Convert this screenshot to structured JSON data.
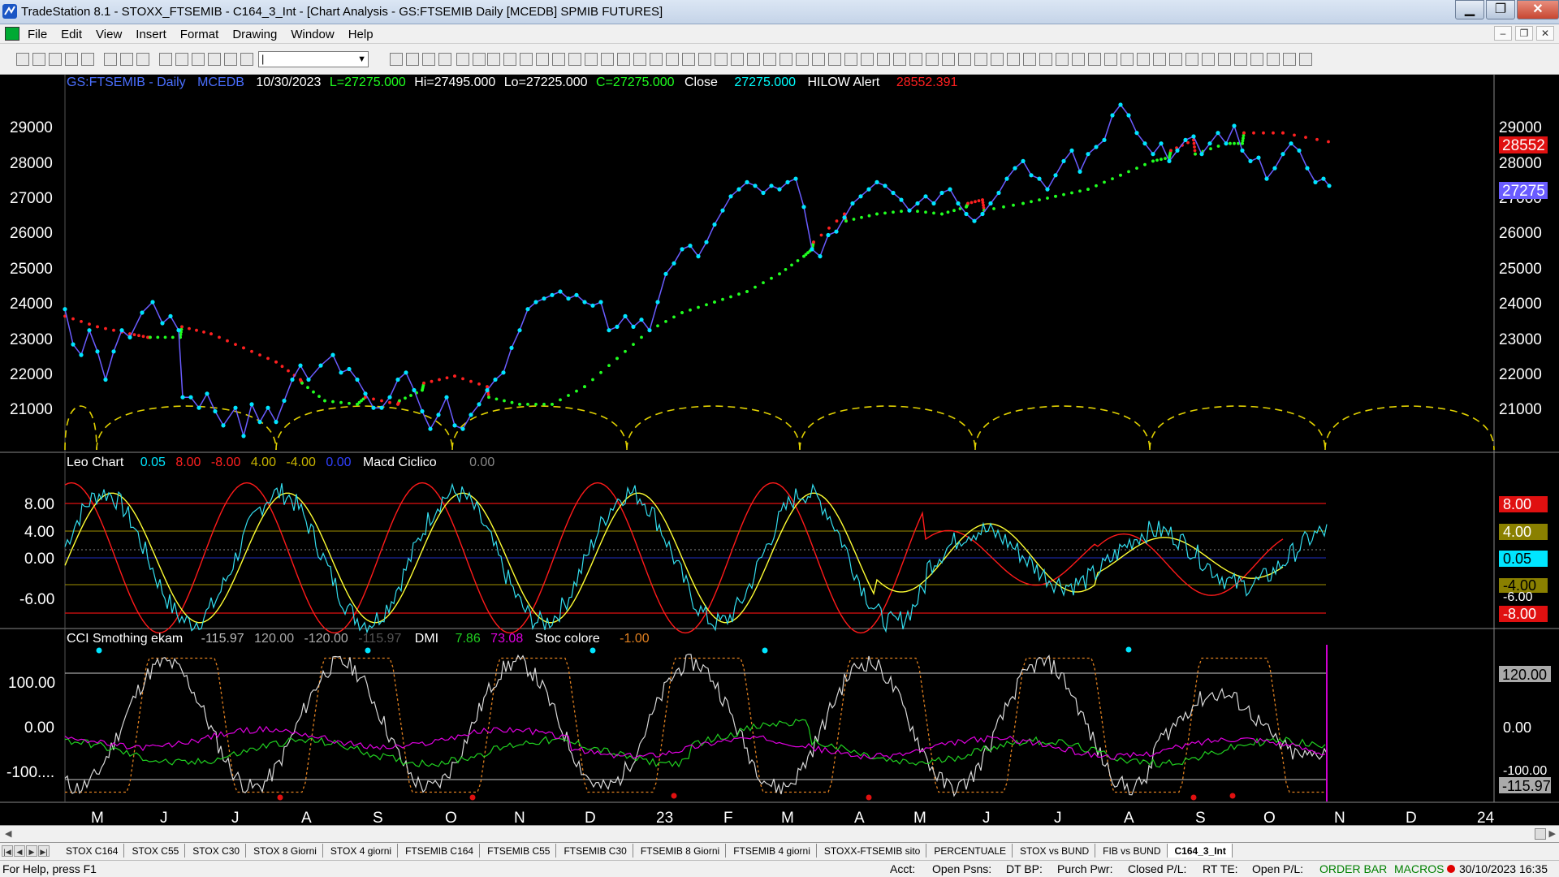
{
  "window": {
    "title": "TradeStation 8.1 - STOXX_FTSEMIB - C164_3_Int - [Chart Analysis - GS:FTSEMIB  Daily  [MCEDB] SPMIB FUTURES]"
  },
  "menu": [
    "File",
    "Edit",
    "View",
    "Insert",
    "Format",
    "Drawing",
    "Window",
    "Help"
  ],
  "toolbar": {
    "symbol_value": "|"
  },
  "price_header": {
    "symbol": "GS:FTSEMIB - Daily",
    "feed": "MCEDB",
    "date": "10/30/2023",
    "last": "L=27275.000",
    "high": "Hi=27495.000",
    "low": "Lo=27225.000",
    "close_field": "C=27275.000",
    "close_label": "Close",
    "close_value": "27275.000",
    "alert_label": "HILOW Alert",
    "alert_value": "28552.391"
  },
  "price_axis": {
    "ticks": [
      "29000",
      "28000",
      "27000",
      "26000",
      "25000",
      "24000",
      "23000",
      "22000",
      "21000"
    ],
    "marker_red": "28552",
    "marker_blue": "27275"
  },
  "macd_header": {
    "name": "Leo Chart",
    "v1": "0.05",
    "v2": "8.00",
    "v3": "-8.00",
    "v4": "4.00",
    "v5": "-4.00",
    "v6": "0.00",
    "name2": "Macd Ciclico",
    "v7": "0.00"
  },
  "macd_axis": {
    "ticks": [
      "8.00",
      "4.00",
      "0.00",
      "-6.00"
    ],
    "markers": [
      "8.00",
      "4.00",
      "0.05",
      "-4.00",
      "-6.00",
      "-8.00"
    ]
  },
  "cci_header": {
    "name": "CCI Smothing ekam",
    "v1": "-115.97",
    "v2": "120.00",
    "v3": "-120.00",
    "v4": "-115.97",
    "dmi_label": "DMI",
    "dmi1": "7.86",
    "dmi2": "73.08",
    "stoc_label": "Stoc colore",
    "stoc_value": "-1.00"
  },
  "cci_axis": {
    "ticks": [
      "100.00",
      "0.00",
      "-100...."
    ],
    "markers": [
      "120.00",
      "0.00",
      "-100.00",
      "-115.97"
    ]
  },
  "time_axis": [
    "M",
    "J",
    "J",
    "A",
    "S",
    "O",
    "N",
    "D",
    "23",
    "F",
    "M",
    "A",
    "M",
    "J",
    "J",
    "A",
    "S",
    "O",
    "N",
    "D",
    "24"
  ],
  "chart_data": {
    "type": "line",
    "title": "GS:FTSEMIB - Daily",
    "xlabel": "",
    "ylabel": "",
    "ylim": [
      20000,
      29900
    ],
    "x": [
      "M",
      "J",
      "J",
      "A",
      "S",
      "O",
      "N",
      "D",
      "23",
      "F",
      "M",
      "A",
      "M",
      "J",
      "J",
      "A",
      "S",
      "O"
    ],
    "series": [
      {
        "name": "Close",
        "values": [
          23100,
          22700,
          21200,
          21900,
          21100,
          20900,
          23500,
          24000,
          23300,
          25500,
          27300,
          25900,
          27200,
          26900,
          28000,
          29500,
          28700,
          27275
        ]
      },
      {
        "name": "HILOW Alert",
        "values": [
          23600,
          23200,
          22500,
          21500,
          21400,
          21700,
          21100,
          21500,
          22800,
          24200,
          25800,
          26500,
          26700,
          26900,
          27200,
          28100,
          28700,
          28552
        ]
      }
    ]
  },
  "tabs": [
    "STOX C164",
    "STOX C55",
    "STOX  C30",
    "STOX  8 Giorni",
    "STOX 4 giorni",
    "FTSEMIB C164",
    "FTSEMIB C55",
    "FTSEMIB C30",
    "FTSEMIB  8 Giorni",
    "FTSEMIB  4 giorni",
    "STOXX-FTSEMIB sito",
    "PERCENTUALE",
    "STOX vs BUND",
    "FIB vs BUND",
    "C164_3_Int"
  ],
  "status": {
    "help": "For Help, press F1",
    "acct": "Acct:",
    "open_psns": "Open Psns:",
    "dt_bp": "DT BP:",
    "purch_pwr": "Purch Pwr:",
    "closed_pl": "Closed P/L:",
    "rt_te": "RT TE:",
    "open_pl": "Open P/L:",
    "order_bar": "ORDER BAR",
    "macros": "MACROS",
    "datetime": "30/10/2023 16:35"
  },
  "colors": {
    "price": "#00ffff",
    "hilow_red": "#ff2020",
    "hilow_green": "#20ff20",
    "cycle": "#e0d000",
    "macd_red": "#ff1a1a",
    "macd_yellow": "#ffff33",
    "cci_white": "#d8d8d8",
    "dmi_green": "#20d020",
    "dmi_magenta": "#e000e0",
    "stoc_orange": "#e08020"
  }
}
